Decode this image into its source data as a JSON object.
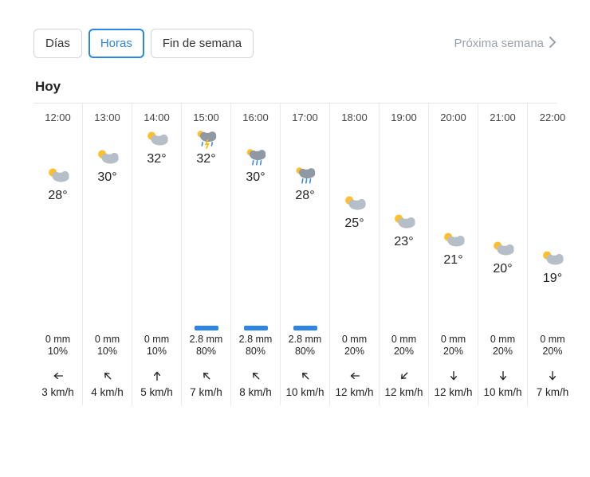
{
  "tabs": {
    "dias": "Días",
    "horas": "Horas",
    "fin": "Fin de semana"
  },
  "next_week": "Próxima semana",
  "section": "Hoy",
  "colors": {
    "accent": "#2c85e0",
    "border": "#cfd6dd",
    "grid": "#e8ebee",
    "muted": "#9aa1a9",
    "precip_bar": "#2c85e0",
    "sun": "#fdbf2d",
    "cloud": "#b6bfc7",
    "cloud_dark": "#8f99a3",
    "rain": "#3a8ee6",
    "bolt": "#ffb400"
  },
  "temp_axis": {
    "min": 19,
    "max": 32,
    "zone_h": 200,
    "stack_h": 50
  },
  "hours": [
    {
      "time": "12:00",
      "temp": 28,
      "icon": "partly",
      "precip_mm": "0 mm",
      "precip_pc": "10%",
      "bar": false,
      "wind_deg": 270,
      "wind": "3 km/h"
    },
    {
      "time": "13:00",
      "temp": 30,
      "icon": "partly",
      "precip_mm": "0 mm",
      "precip_pc": "10%",
      "bar": false,
      "wind_deg": 315,
      "wind": "4 km/h"
    },
    {
      "time": "14:00",
      "temp": 32,
      "icon": "partly",
      "precip_mm": "0 mm",
      "precip_pc": "10%",
      "bar": false,
      "wind_deg": 0,
      "wind": "5 km/h"
    },
    {
      "time": "15:00",
      "temp": 32,
      "icon": "storm",
      "precip_mm": "2.8 mm",
      "precip_pc": "80%",
      "bar": true,
      "wind_deg": 315,
      "wind": "7 km/h"
    },
    {
      "time": "16:00",
      "temp": 30,
      "icon": "rain",
      "precip_mm": "2.8 mm",
      "precip_pc": "80%",
      "bar": true,
      "wind_deg": 315,
      "wind": "8 km/h"
    },
    {
      "time": "17:00",
      "temp": 28,
      "icon": "rain",
      "precip_mm": "2.8 mm",
      "precip_pc": "80%",
      "bar": true,
      "wind_deg": 315,
      "wind": "10 km/h"
    },
    {
      "time": "18:00",
      "temp": 25,
      "icon": "partly",
      "precip_mm": "0 mm",
      "precip_pc": "20%",
      "bar": false,
      "wind_deg": 270,
      "wind": "12 km/h"
    },
    {
      "time": "19:00",
      "temp": 23,
      "icon": "partly",
      "precip_mm": "0 mm",
      "precip_pc": "20%",
      "bar": false,
      "wind_deg": 225,
      "wind": "12 km/h"
    },
    {
      "time": "20:00",
      "temp": 21,
      "icon": "partly",
      "precip_mm": "0 mm",
      "precip_pc": "20%",
      "bar": false,
      "wind_deg": 180,
      "wind": "12 km/h"
    },
    {
      "time": "21:00",
      "temp": 20,
      "icon": "partly",
      "precip_mm": "0 mm",
      "precip_pc": "20%",
      "bar": false,
      "wind_deg": 180,
      "wind": "10 km/h"
    },
    {
      "time": "22:00",
      "temp": 19,
      "icon": "partly",
      "precip_mm": "0 mm",
      "precip_pc": "20%",
      "bar": false,
      "wind_deg": 180,
      "wind": "7 km/h"
    }
  ]
}
